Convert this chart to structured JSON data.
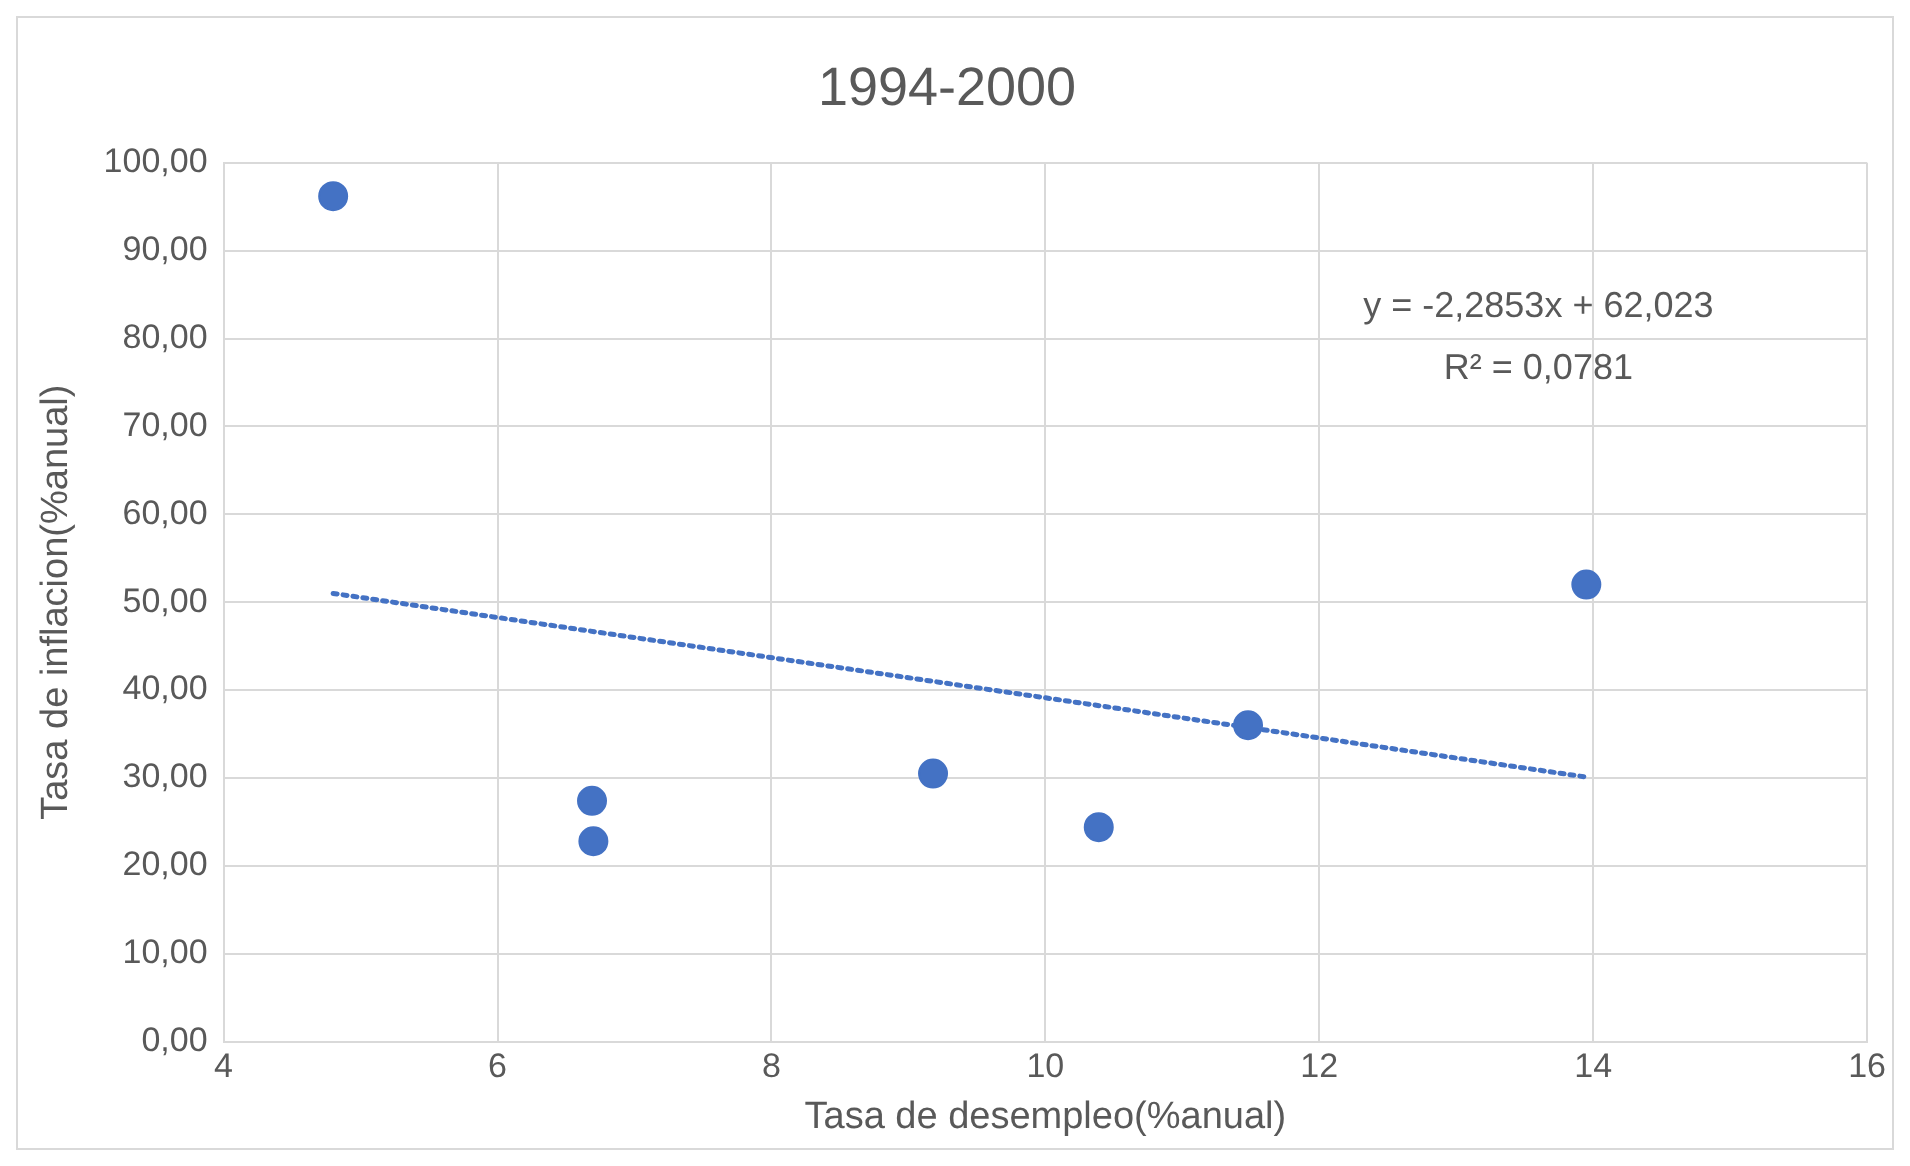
{
  "chart_data": {
    "type": "scatter",
    "title": "1994-2000",
    "xlabel": "Tasa de desempleo(%anual)",
    "ylabel": "Tasa de inflacion(%anual)",
    "annotations": [
      "y = -2,2853x + 62,023",
      "R² = 0,0781"
    ],
    "xlim": [
      4,
      16
    ],
    "xticks": [
      4,
      6,
      8,
      10,
      12,
      14,
      16
    ],
    "ylim": [
      0,
      100
    ],
    "yticks": [
      {
        "value": 0,
        "label": "0,00"
      },
      {
        "value": 10,
        "label": "10,00"
      },
      {
        "value": 20,
        "label": "20,00"
      },
      {
        "value": 30,
        "label": "30,00"
      },
      {
        "value": 40,
        "label": "40,00"
      },
      {
        "value": 50,
        "label": "50,00"
      },
      {
        "value": 60,
        "label": "60,00"
      },
      {
        "value": 70,
        "label": "70,00"
      },
      {
        "value": 80,
        "label": "80,00"
      },
      {
        "value": 90,
        "label": "90,00"
      },
      {
        "value": 100,
        "label": "100,00"
      }
    ],
    "grid": true,
    "legend": false,
    "series": [
      {
        "type": "scatter",
        "color": "#4472c4",
        "marker": "circle",
        "x": [
          4.8,
          6.69,
          6.7,
          9.18,
          10.39,
          11.48,
          13.95
        ],
        "values": [
          96.2,
          27.4,
          22.8,
          30.5,
          24.4,
          36.0,
          52.0
        ]
      },
      {
        "type": "line",
        "color": "#4472c4",
        "marker": "none",
        "line_style": "dotted",
        "x": [
          4.8,
          13.95
        ],
        "values": [
          51.0,
          30.1
        ]
      }
    ]
  }
}
